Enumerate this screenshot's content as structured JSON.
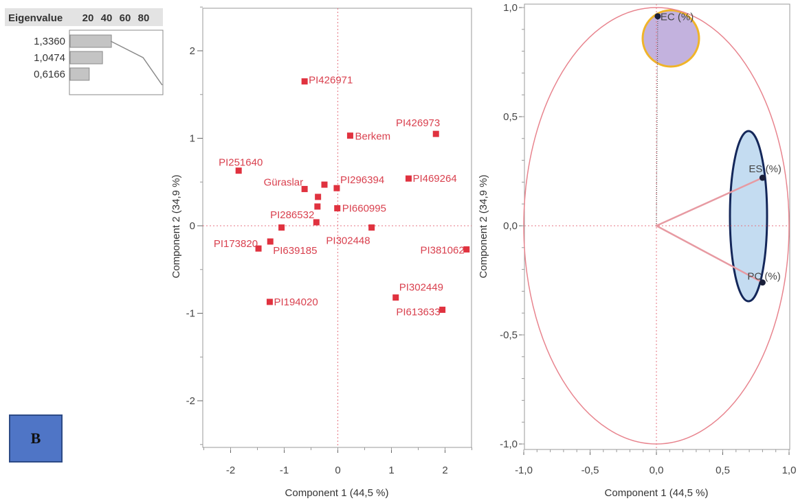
{
  "badge": {
    "label": "B"
  },
  "eigen_table": {
    "header": "Eigenvalue",
    "scale_ticks": [
      "20",
      "40",
      "60",
      "80"
    ],
    "rows": [
      {
        "value_label": "1,3360",
        "percent": 44.5
      },
      {
        "value_label": "1,0474",
        "percent": 34.9
      },
      {
        "value_label": "0,6166",
        "percent": 20.6
      }
    ],
    "cumulative_percent": [
      44.5,
      79.4,
      100
    ]
  },
  "colors": {
    "point": "#e0323f",
    "label": "#d9404e",
    "circle": "#e8848e",
    "vector": "#e79aa2",
    "ec_fill": "#b8a4d8",
    "ec_ring": "#f0b429",
    "es_fill": "#c4dcf1",
    "es_ring": "#14275a",
    "badge": "#4f75c6"
  },
  "chart_data": [
    {
      "type": "scatter",
      "title": "",
      "xlabel": "Component 1  (44,5 %)",
      "ylabel": "Component 2  (34,9 %)",
      "xlim": [
        -2.5,
        2.5
      ],
      "ylim": [
        -2.5,
        2.5
      ],
      "xticks": [
        -2,
        -1,
        0,
        1,
        2
      ],
      "yticks": [
        -2,
        -1,
        0,
        1,
        2
      ],
      "reference_lines": {
        "x": 0,
        "y": 0
      },
      "points": [
        {
          "label": "PI426971",
          "x": -0.62,
          "y": 1.65
        },
        {
          "label": "Berkem",
          "x": 0.23,
          "y": 1.03
        },
        {
          "label": "PI426973",
          "x": 1.83,
          "y": 1.05
        },
        {
          "label": "PI251640",
          "x": -1.85,
          "y": 0.63
        },
        {
          "label": "Güraslar",
          "x": -0.62,
          "y": 0.42
        },
        {
          "label": "",
          "x": -0.25,
          "y": 0.47
        },
        {
          "label": "PI296394",
          "x": -0.02,
          "y": 0.43
        },
        {
          "label": "PI469264",
          "x": 1.32,
          "y": 0.54
        },
        {
          "label": "",
          "x": -0.37,
          "y": 0.33
        },
        {
          "label": "",
          "x": -0.38,
          "y": 0.22
        },
        {
          "label": "PI660995",
          "x": -0.01,
          "y": 0.2
        },
        {
          "label": "PI286532",
          "x": -0.4,
          "y": 0.04
        },
        {
          "label": "",
          "x": -1.05,
          "y": -0.02
        },
        {
          "label": "PI302448",
          "x": 0.63,
          "y": -0.02
        },
        {
          "label": "PI173820",
          "x": -1.48,
          "y": -0.26
        },
        {
          "label": "PI639185",
          "x": -1.26,
          "y": -0.18
        },
        {
          "label": "PI381062",
          "x": 2.4,
          "y": -0.27
        },
        {
          "label": "PI302449",
          "x": 1.08,
          "y": -0.82
        },
        {
          "label": "PI194020",
          "x": -1.27,
          "y": -0.87
        },
        {
          "label": "PI613633",
          "x": 1.95,
          "y": -0.96
        }
      ]
    },
    {
      "type": "scatter",
      "title": "",
      "xlabel": "Component 1  (44,5 %)",
      "ylabel": "Component 2  (34,9 %)",
      "xlim": [
        -1.0,
        1.0
      ],
      "ylim": [
        -1.0,
        1.0
      ],
      "xticks": [
        "-1,0",
        "-0,5",
        "0,0",
        "0,5",
        "1,0"
      ],
      "yticks": [
        "-1,0",
        "-0,5",
        "0,0",
        "0,5",
        "1,0"
      ],
      "reference_lines": {
        "x": 0,
        "y": 0
      },
      "unit_circle": true,
      "loadings": [
        {
          "label": "EC (%)",
          "x": 0.01,
          "y": 0.96
        },
        {
          "label": "ES (%)",
          "x": 0.8,
          "y": 0.22
        },
        {
          "label": "PC (%)",
          "x": 0.8,
          "y": -0.26
        }
      ],
      "highlight_groups": [
        {
          "members": [
            "EC (%)"
          ],
          "fill": "purple",
          "outline": "orange"
        },
        {
          "members": [
            "ES (%)",
            "PC (%)"
          ],
          "fill": "light-blue",
          "outline": "navy"
        }
      ]
    }
  ]
}
